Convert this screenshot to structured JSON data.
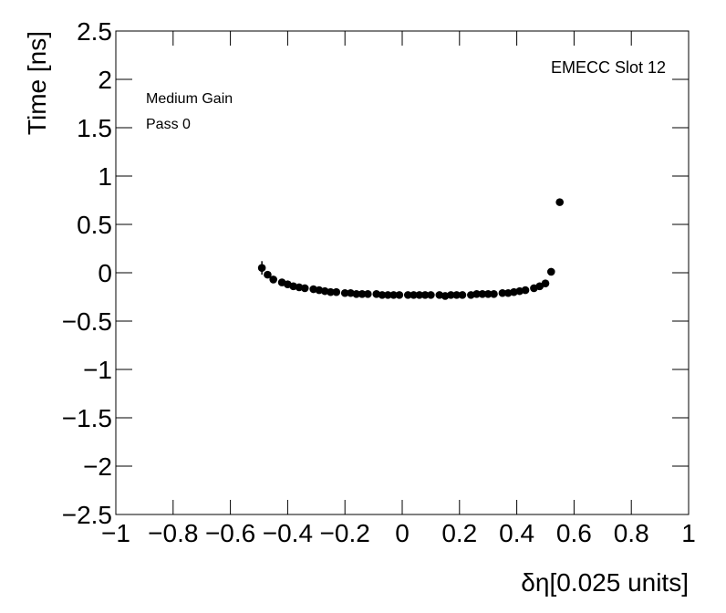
{
  "chart_data": {
    "type": "scatter",
    "x_label": "δη[0.025 units]",
    "y_label": "Time [ns]",
    "annotations": [
      "EMECC Slot 12",
      "Medium Gain",
      "Pass 0"
    ],
    "color": "#000000",
    "xlim": [
      -1,
      1
    ],
    "xticks": [
      {
        "value": -1,
        "label": "−1"
      },
      {
        "value": -0.8,
        "label": "−0.8"
      },
      {
        "value": -0.6,
        "label": "−0.6"
      },
      {
        "value": -0.4,
        "label": "−0.4"
      },
      {
        "value": -0.2,
        "label": "−0.2"
      },
      0,
      0.2,
      0.4,
      0.6,
      0.8,
      1
    ],
    "ylim": [
      -2.5,
      2.5
    ],
    "yticks": [
      {
        "value": -2.5,
        "label": "−2.5"
      },
      {
        "value": -2,
        "label": "−2"
      },
      {
        "value": -1.5,
        "label": "−1.5"
      },
      {
        "value": -1,
        "label": "−1"
      },
      {
        "value": -0.5,
        "label": "−0.5"
      },
      0,
      0.5,
      1,
      1.5,
      2,
      2.5
    ],
    "x": [
      -0.49,
      -0.47,
      -0.45,
      -0.42,
      -0.4,
      -0.38,
      -0.36,
      -0.34,
      -0.31,
      -0.29,
      -0.27,
      -0.25,
      -0.23,
      -0.2,
      -0.18,
      -0.16,
      -0.14,
      -0.12,
      -0.09,
      -0.07,
      -0.05,
      -0.03,
      -0.01,
      0.02,
      0.04,
      0.06,
      0.08,
      0.1,
      0.13,
      0.15,
      0.17,
      0.19,
      0.21,
      0.24,
      0.26,
      0.28,
      0.3,
      0.32,
      0.35,
      0.37,
      0.39,
      0.41,
      0.43,
      0.46,
      0.48,
      0.5,
      0.52,
      0.55
    ],
    "values": [
      0.05,
      -0.02,
      -0.07,
      -0.1,
      -0.12,
      -0.14,
      -0.15,
      -0.16,
      -0.17,
      -0.18,
      -0.19,
      -0.2,
      -0.2,
      -0.21,
      -0.21,
      -0.22,
      -0.22,
      -0.22,
      -0.22,
      -0.23,
      -0.23,
      -0.23,
      -0.23,
      -0.23,
      -0.23,
      -0.23,
      -0.23,
      -0.23,
      -0.23,
      -0.24,
      -0.23,
      -0.23,
      -0.23,
      -0.23,
      -0.22,
      -0.22,
      -0.22,
      -0.22,
      -0.21,
      -0.21,
      -0.2,
      -0.19,
      -0.18,
      -0.16,
      -0.14,
      -0.11,
      0.01,
      0.73
    ],
    "errors": [
      0.07,
      0.02,
      0.02,
      0.01,
      0.01,
      0.01,
      0.01,
      0.01,
      0.01,
      0.01,
      0.01,
      0.01,
      0.01,
      0.01,
      0.01,
      0.01,
      0.01,
      0.01,
      0.01,
      0.01,
      0.01,
      0.01,
      0.01,
      0.01,
      0.01,
      0.01,
      0.01,
      0.01,
      0.01,
      0.01,
      0.01,
      0.01,
      0.01,
      0.01,
      0.01,
      0.01,
      0.01,
      0.01,
      0.01,
      0.01,
      0.01,
      0.01,
      0.01,
      0.01,
      0.01,
      0.02,
      0.02,
      0.02
    ]
  }
}
